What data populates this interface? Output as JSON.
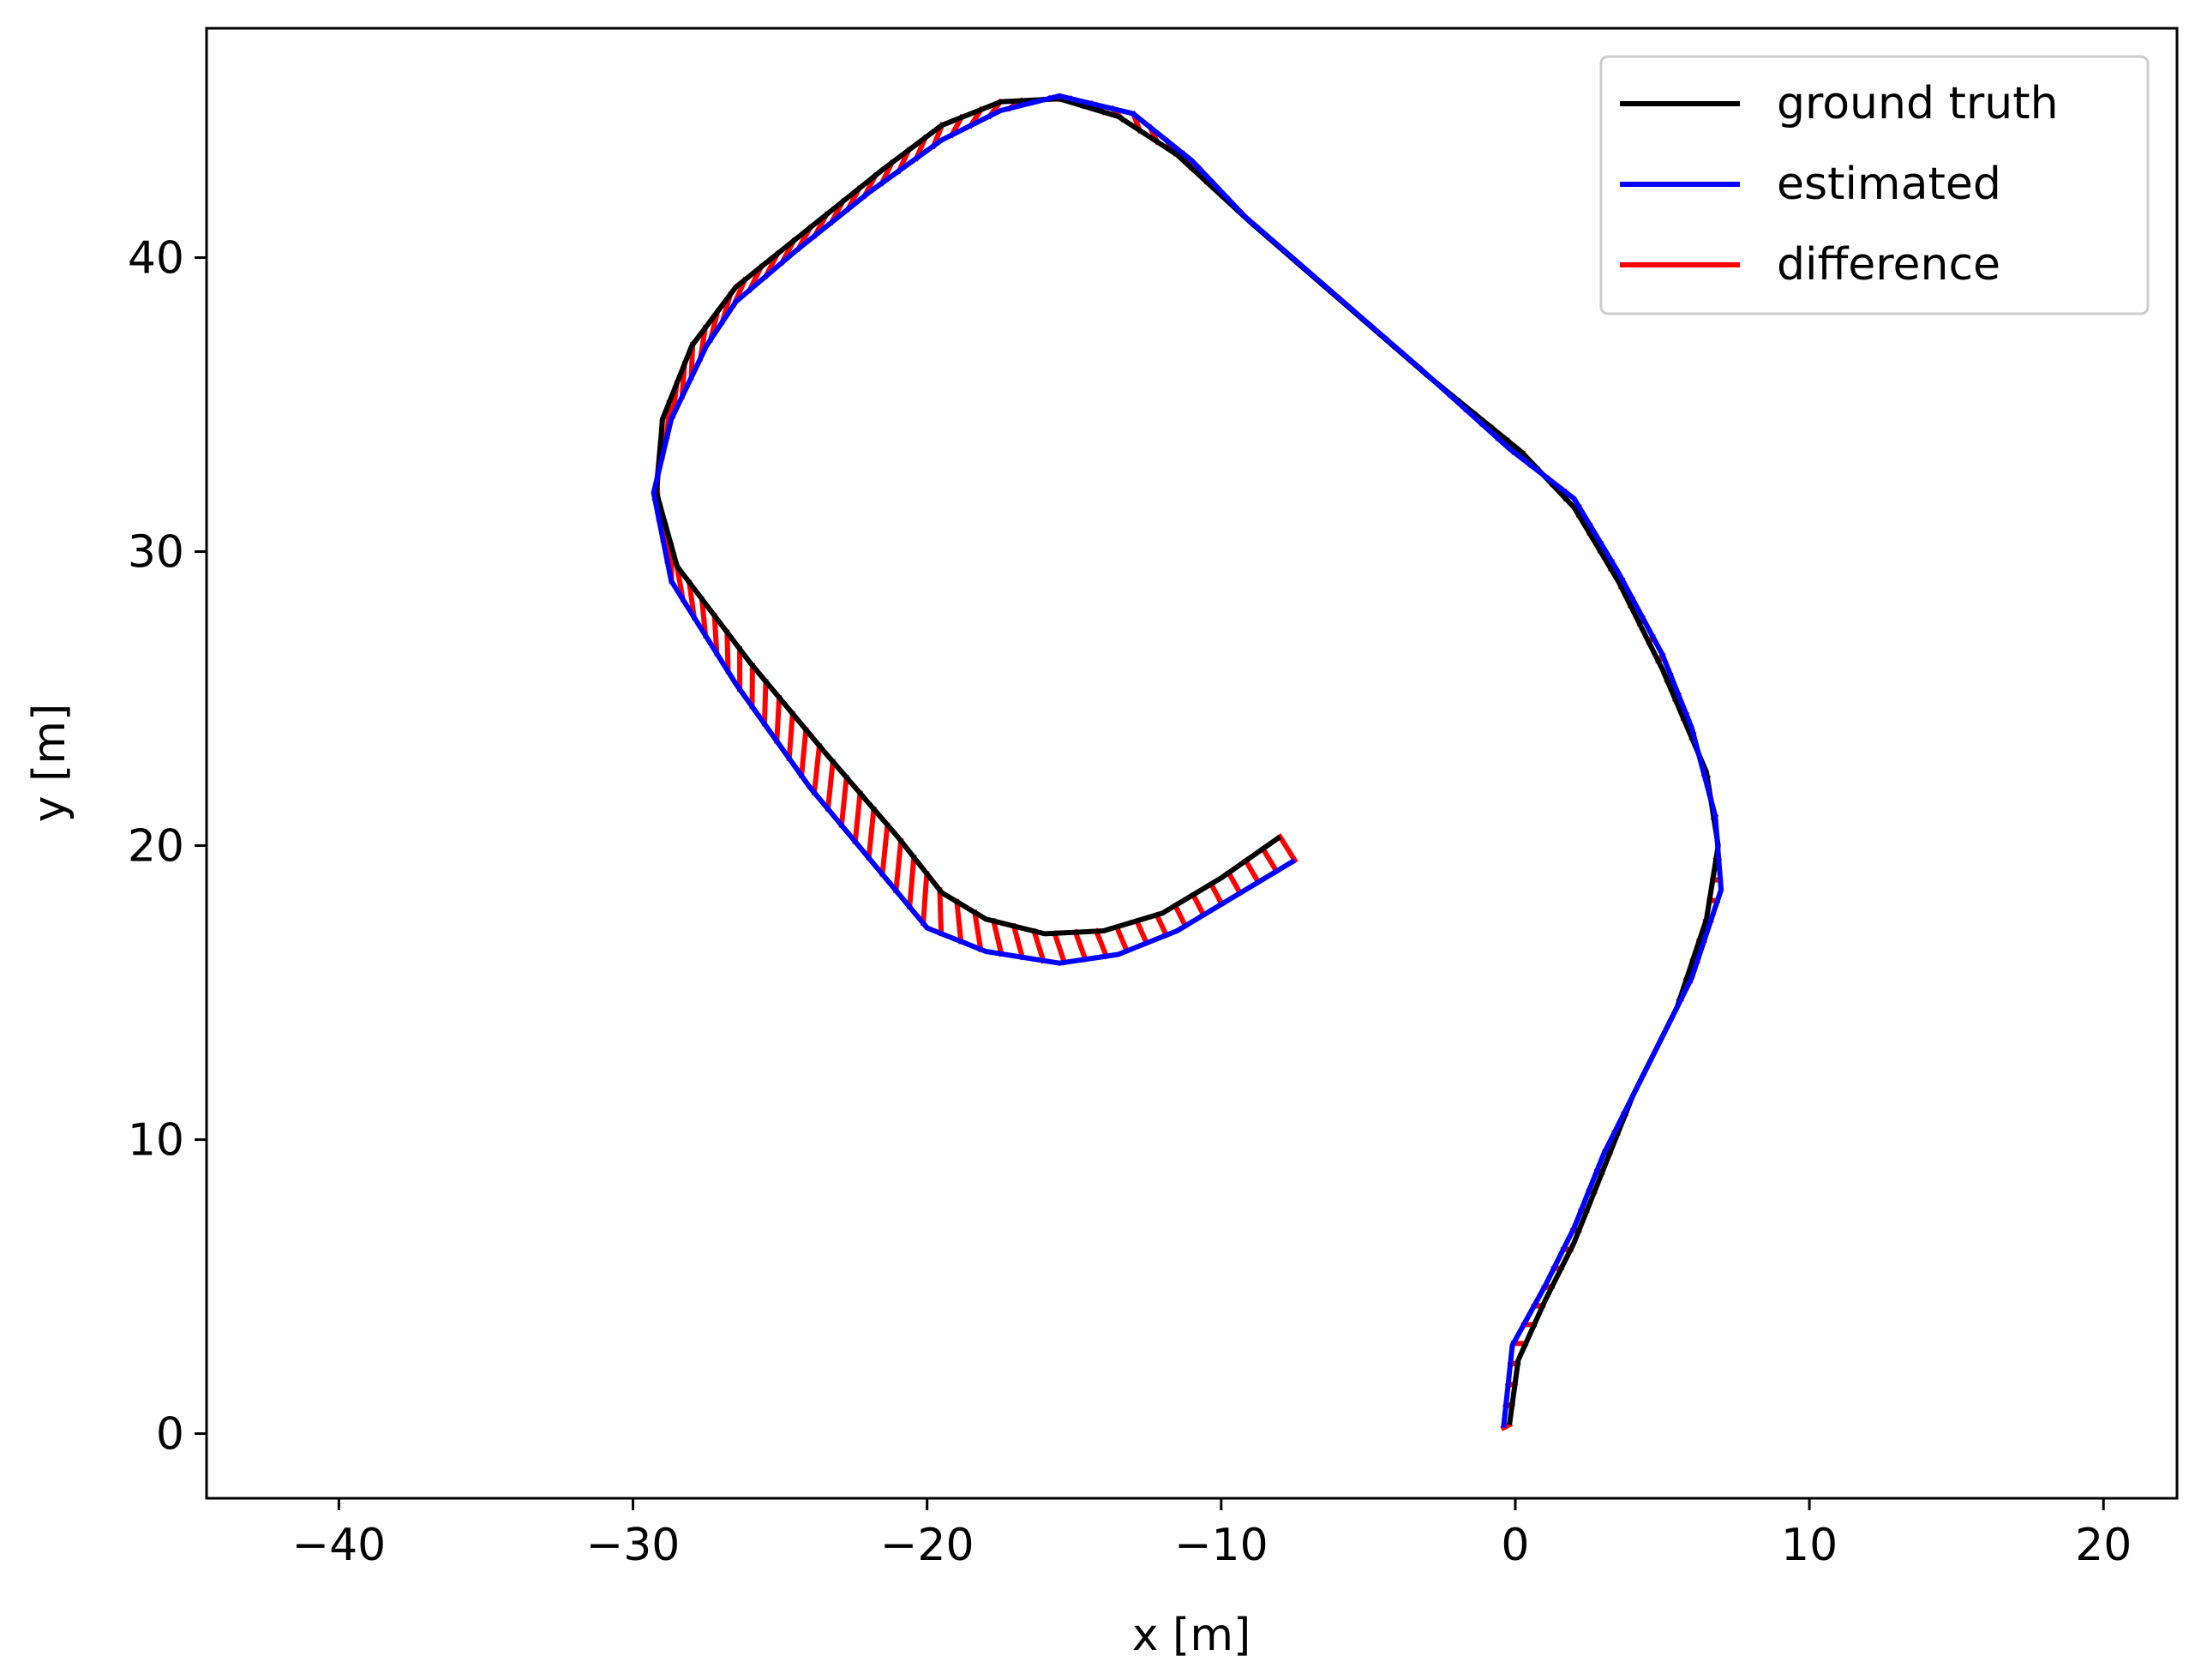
{
  "chart_data": {
    "type": "line",
    "title": "",
    "xlabel": "x [m]",
    "ylabel": "y [m]",
    "xlim": [
      -44.5,
      22.5
    ],
    "ylim": [
      -2.2,
      47.8
    ],
    "xticks": [
      -40,
      -30,
      -20,
      -10,
      0,
      10,
      20
    ],
    "yticks": [
      0,
      10,
      20,
      30,
      40
    ],
    "xtick_labels": [
      "−40",
      "−30",
      "−20",
      "−10",
      "0",
      "10",
      "20"
    ],
    "ytick_labels": [
      "0",
      "10",
      "20",
      "30",
      "40"
    ],
    "grid": false,
    "legend_position": "top-right",
    "colors": {
      "ground_truth": "#000000",
      "estimated": "#0000ff",
      "difference": "#ff0000"
    },
    "series": [
      {
        "name": "ground truth",
        "color": "#000000",
        "points": [
          [
            -0.2,
            0.3
          ],
          [
            0.1,
            2.5
          ],
          [
            1.0,
            4.5
          ],
          [
            2.0,
            6.5
          ],
          [
            3.0,
            9.0
          ],
          [
            4.0,
            11.5
          ],
          [
            5.5,
            14.5
          ],
          [
            6.5,
            17.5
          ],
          [
            6.9,
            20.0
          ],
          [
            6.5,
            22.5
          ],
          [
            5.0,
            26.0
          ],
          [
            3.5,
            29.0
          ],
          [
            2.0,
            31.5
          ],
          [
            0.2,
            33.4
          ],
          [
            -3.0,
            36.0
          ],
          [
            -6.0,
            38.6
          ],
          [
            -9.0,
            41.2
          ],
          [
            -11.5,
            43.5
          ],
          [
            -13.5,
            44.8
          ],
          [
            -15.5,
            45.4
          ],
          [
            -17.5,
            45.3
          ],
          [
            -19.5,
            44.5
          ],
          [
            -21.5,
            43.0
          ],
          [
            -24.0,
            41.0
          ],
          [
            -26.5,
            39.0
          ],
          [
            -28.0,
            37.0
          ],
          [
            -29.0,
            34.5
          ],
          [
            -29.2,
            32.0
          ],
          [
            -28.5,
            29.5
          ],
          [
            -26.0,
            26.2
          ],
          [
            -23.5,
            23.2
          ],
          [
            -21.0,
            20.3
          ],
          [
            -19.5,
            18.4
          ],
          [
            -18.0,
            17.5
          ],
          [
            -16.0,
            17.0
          ],
          [
            -14.0,
            17.1
          ],
          [
            -12.0,
            17.7
          ],
          [
            -10.0,
            18.9
          ],
          [
            -8.0,
            20.3
          ]
        ]
      },
      {
        "name": "estimated",
        "color": "#0000ff",
        "points": [
          [
            -0.4,
            0.2
          ],
          [
            -0.1,
            3.0
          ],
          [
            1.0,
            5.0
          ],
          [
            2.0,
            7.0
          ],
          [
            3.0,
            9.5
          ],
          [
            4.5,
            12.5
          ],
          [
            6.0,
            15.5
          ],
          [
            7.0,
            18.5
          ],
          [
            6.8,
            21.0
          ],
          [
            6.0,
            24.0
          ],
          [
            5.0,
            26.5
          ],
          [
            3.5,
            29.3
          ],
          [
            2.0,
            31.8
          ],
          [
            -0.2,
            33.5
          ],
          [
            -3.2,
            36.2
          ],
          [
            -6.2,
            38.8
          ],
          [
            -9.2,
            41.4
          ],
          [
            -11.0,
            43.3
          ],
          [
            -13.0,
            44.9
          ],
          [
            -15.5,
            45.5
          ],
          [
            -17.5,
            45.0
          ],
          [
            -19.5,
            44.0
          ],
          [
            -22.0,
            42.2
          ],
          [
            -24.5,
            40.2
          ],
          [
            -26.5,
            38.5
          ],
          [
            -27.5,
            37.0
          ],
          [
            -28.7,
            34.5
          ],
          [
            -29.3,
            32.0
          ],
          [
            -28.7,
            29.0
          ],
          [
            -26.5,
            25.5
          ],
          [
            -24.0,
            22.0
          ],
          [
            -21.5,
            19.0
          ],
          [
            -20.0,
            17.2
          ],
          [
            -18.0,
            16.4
          ],
          [
            -15.5,
            16.0
          ],
          [
            -13.5,
            16.3
          ],
          [
            -11.5,
            17.1
          ],
          [
            -9.5,
            18.3
          ],
          [
            -7.5,
            19.5
          ]
        ]
      }
    ]
  },
  "legend": {
    "entries": [
      {
        "label": "ground truth",
        "color": "#000000"
      },
      {
        "label": "estimated",
        "color": "#0000ff"
      },
      {
        "label": "difference",
        "color": "#ff0000"
      }
    ]
  }
}
